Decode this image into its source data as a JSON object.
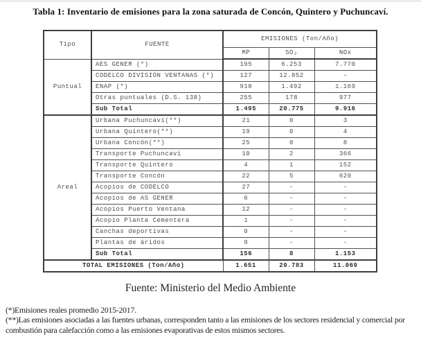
{
  "doc": {
    "title": "Tabla 1: Inventario de emisiones para la zona saturada de Concón, Quintero y Puchuncaví.",
    "source": "Fuente: Ministerio del Medio Ambiente",
    "footnotes": [
      "(*)Emisiones reales promedio 2015-2017.",
      "(**)Las emisiones asociadas a las fuentes urbanas, corresponden tanto a las emisiones de los sectores residencial y comercial por combustión para calefacción como a las emisiones evaporativas de estos mismos sectores."
    ]
  },
  "table": {
    "headers": {
      "tipo": "Tipo",
      "fuente": "FUENTE",
      "emisiones": "EMISIONES (Ton/Año)",
      "mp": "MP",
      "so2": "SO₂",
      "nox": "NOx"
    },
    "groups": [
      {
        "tipo": "Puntual",
        "rows": [
          {
            "fuente": "AES GENER (*)",
            "mp": "195",
            "so2": "6.253",
            "nox": "7.770"
          },
          {
            "fuente": "CODELCO DIVISIÓN VENTANAS (*)",
            "mp": "127",
            "so2": "12.852",
            "nox": "-"
          },
          {
            "fuente": "ENAP (*)",
            "mp": "918",
            "so2": "1.492",
            "nox": "1.169"
          },
          {
            "fuente": "Otras puntuales (D.S. 138)",
            "mp": "255",
            "so2": "178",
            "nox": "977"
          },
          {
            "fuente": "Sub Total",
            "mp": "1.495",
            "so2": "20.775",
            "nox": "9.916"
          }
        ]
      },
      {
        "tipo": "Areal",
        "rows": [
          {
            "fuente": "Urbana Puchuncaví(**)",
            "mp": "21",
            "so2": "0",
            "nox": "3"
          },
          {
            "fuente": "Urbana Quintero(**)",
            "mp": "19",
            "so2": "0",
            "nox": "4"
          },
          {
            "fuente": "Urbana Concón(**)",
            "mp": "25",
            "so2": "0",
            "nox": "8"
          },
          {
            "fuente": "Transporte Puchuncaví",
            "mp": "10",
            "so2": "2",
            "nox": "366"
          },
          {
            "fuente": "Transporte Quintero",
            "mp": "4",
            "so2": "1",
            "nox": "152"
          },
          {
            "fuente": "Transporte Concón",
            "mp": "22",
            "so2": "5",
            "nox": "620"
          },
          {
            "fuente": "Acopios de CODELCO",
            "mp": "27",
            "so2": "-",
            "nox": "-"
          },
          {
            "fuente": "Acopios de AS GENER",
            "mp": "6",
            "so2": "-",
            "nox": "-"
          },
          {
            "fuente": "Acopios Puerto Ventana",
            "mp": "12",
            "so2": "-",
            "nox": "-"
          },
          {
            "fuente": "Acopio Planta Cementera",
            "mp": "1",
            "so2": "-",
            "nox": "-"
          },
          {
            "fuente": "Canchas deportivas",
            "mp": "0",
            "so2": "-",
            "nox": "-"
          },
          {
            "fuente": "Plantas de áridos",
            "mp": "9",
            "so2": "-",
            "nox": "-"
          },
          {
            "fuente": "Sub Total",
            "mp": "156",
            "so2": "8",
            "nox": "1.153"
          }
        ]
      }
    ],
    "total": {
      "label": "TOTAL EMISIONES (Ton/Año)",
      "mp": "1.651",
      "so2": "20.783",
      "nox": "11.069"
    }
  },
  "colors": {
    "border": "#3d3d3d",
    "cell_text": "#4d4d4d",
    "title_text": "#111111"
  }
}
